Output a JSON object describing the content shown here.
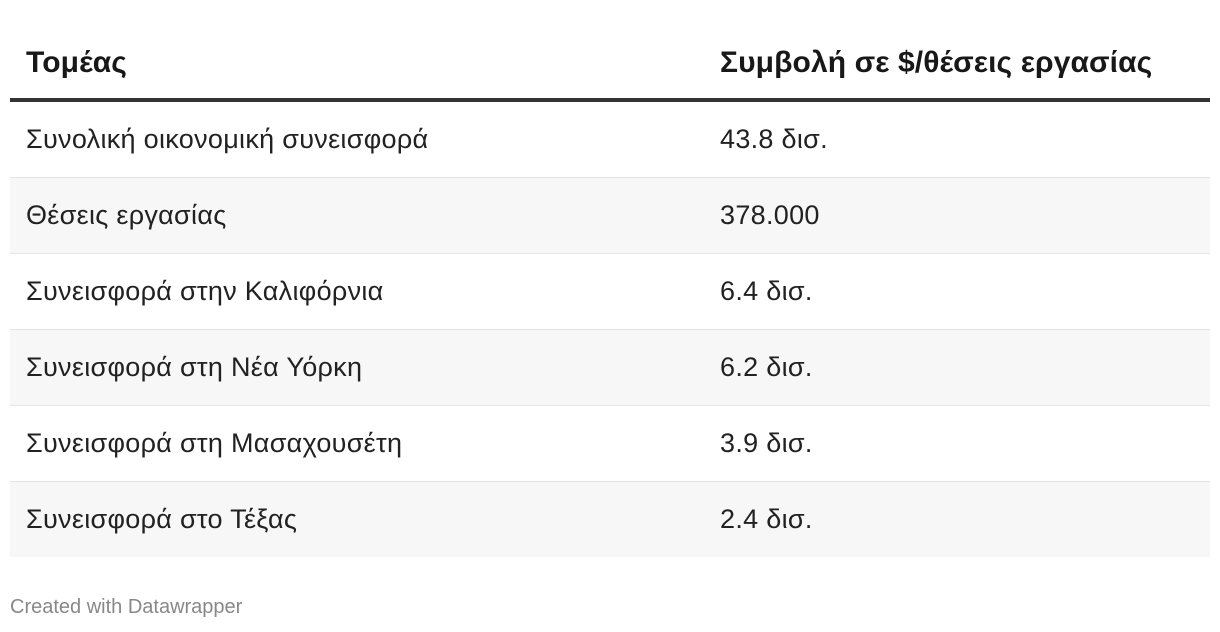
{
  "chart_data": {
    "type": "table",
    "columns": [
      "Τομέας",
      "Συμβολή σε $/θέσεις εργασίας"
    ],
    "rows": [
      [
        "Συνολική οικονομική συνεισφορά",
        "43.8 δισ."
      ],
      [
        "Θέσεις εργασίας",
        "378.000"
      ],
      [
        "Συνεισφορά στην Καλιφόρνια",
        "6.4 δισ."
      ],
      [
        "Συνεισφορά στη Νέα Υόρκη",
        "6.2 δισ."
      ],
      [
        "Συνεισφορά στη Μασαχουσέτη",
        "3.9 δισ."
      ],
      [
        "Συνεισφορά στο Τέξας",
        "2.4 δισ."
      ]
    ]
  },
  "footer": {
    "credit": "Created with Datawrapper"
  },
  "colors": {
    "header_rule": "#333333",
    "zebra_row": "#f7f7f7",
    "row_divider": "#e4e4e4",
    "footer_text": "#888888"
  }
}
